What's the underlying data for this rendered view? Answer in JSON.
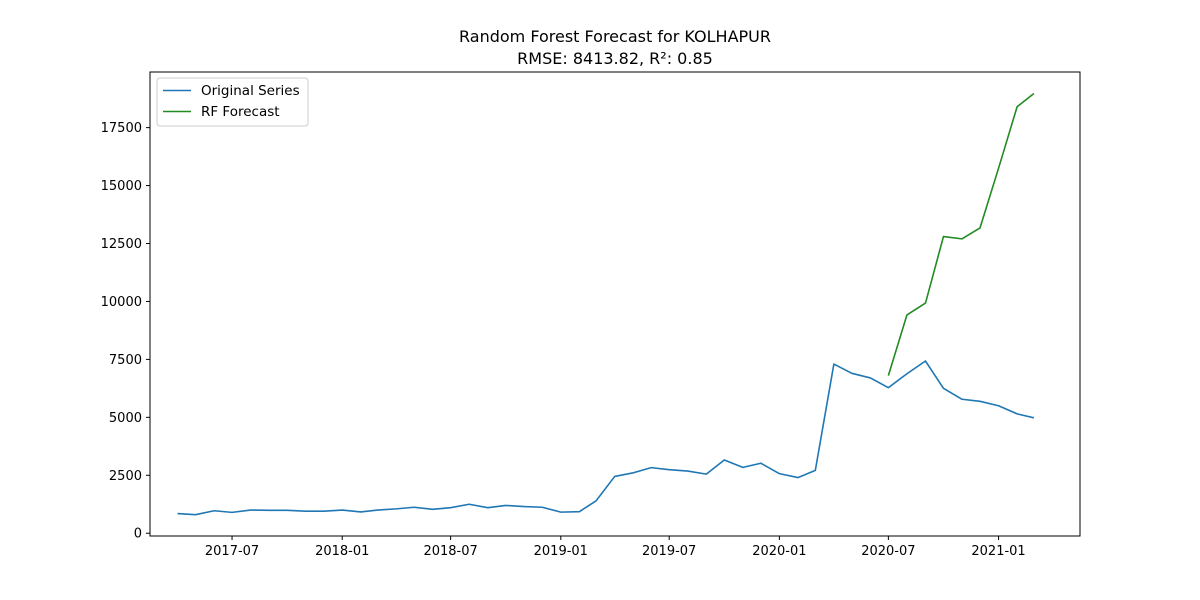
{
  "chart_data": {
    "type": "line",
    "title": "Random Forest Forecast for KOLHAPUR",
    "subtitle": "RMSE: 8413.82, R²: 0.85",
    "xlabel": "",
    "ylabel": "",
    "x_range": [
      "2017-02-14",
      "2021-05-17"
    ],
    "ylim": [
      -120,
      19900
    ],
    "x_ticks": [
      {
        "date": "2017-07-01",
        "label": "2017-07"
      },
      {
        "date": "2018-01-01",
        "label": "2018-01"
      },
      {
        "date": "2018-07-01",
        "label": "2018-07"
      },
      {
        "date": "2019-01-01",
        "label": "2019-01"
      },
      {
        "date": "2019-07-01",
        "label": "2019-07"
      },
      {
        "date": "2020-01-01",
        "label": "2020-01"
      },
      {
        "date": "2020-07-01",
        "label": "2020-07"
      },
      {
        "date": "2021-01-01",
        "label": "2021-01"
      }
    ],
    "y_ticks": [
      0,
      2500,
      5000,
      7500,
      10000,
      12500,
      15000,
      17500
    ],
    "grid": false,
    "legend_position": "top-left",
    "series": [
      {
        "name": "Original Series",
        "color": "#1f77b4",
        "x": [
          "2017-04-01",
          "2017-05-01",
          "2017-06-01",
          "2017-07-01",
          "2017-08-01",
          "2017-09-01",
          "2017-10-01",
          "2017-11-01",
          "2017-12-01",
          "2018-01-01",
          "2018-02-01",
          "2018-03-01",
          "2018-04-01",
          "2018-05-01",
          "2018-06-01",
          "2018-07-01",
          "2018-08-01",
          "2018-09-01",
          "2018-10-01",
          "2018-11-01",
          "2018-12-01",
          "2019-01-01",
          "2019-02-01",
          "2019-03-01",
          "2019-04-01",
          "2019-05-01",
          "2019-06-01",
          "2019-07-01",
          "2019-08-01",
          "2019-09-01",
          "2019-10-01",
          "2019-11-01",
          "2019-12-01",
          "2020-01-01",
          "2020-02-01",
          "2020-03-01",
          "2020-04-01",
          "2020-05-01",
          "2020-06-01",
          "2020-07-01",
          "2020-08-01",
          "2020-09-01",
          "2020-10-01",
          "2020-11-01",
          "2020-12-01",
          "2021-01-01",
          "2021-02-01",
          "2021-03-01"
        ],
        "y": [
          850,
          800,
          970,
          900,
          1000,
          990,
          990,
          950,
          950,
          1000,
          920,
          1000,
          1050,
          1120,
          1030,
          1100,
          1250,
          1100,
          1200,
          1150,
          1120,
          910,
          930,
          1400,
          2450,
          2600,
          2830,
          2740,
          2680,
          2550,
          3160,
          2840,
          3020,
          2570,
          2400,
          2710,
          7300,
          6900,
          6700,
          6280,
          6880,
          7430,
          6250,
          5780,
          5690,
          5500,
          5150,
          4980
        ]
      },
      {
        "name": "RF Forecast",
        "color": "#228b22",
        "x": [
          "2020-07-01",
          "2020-08-01",
          "2020-09-01",
          "2020-10-01",
          "2020-11-01",
          "2020-12-01",
          "2021-01-01",
          "2021-02-01",
          "2021-03-01"
        ],
        "y": [
          6800,
          9420,
          9930,
          12800,
          12700,
          13170,
          15750,
          18400,
          18970
        ]
      }
    ]
  }
}
